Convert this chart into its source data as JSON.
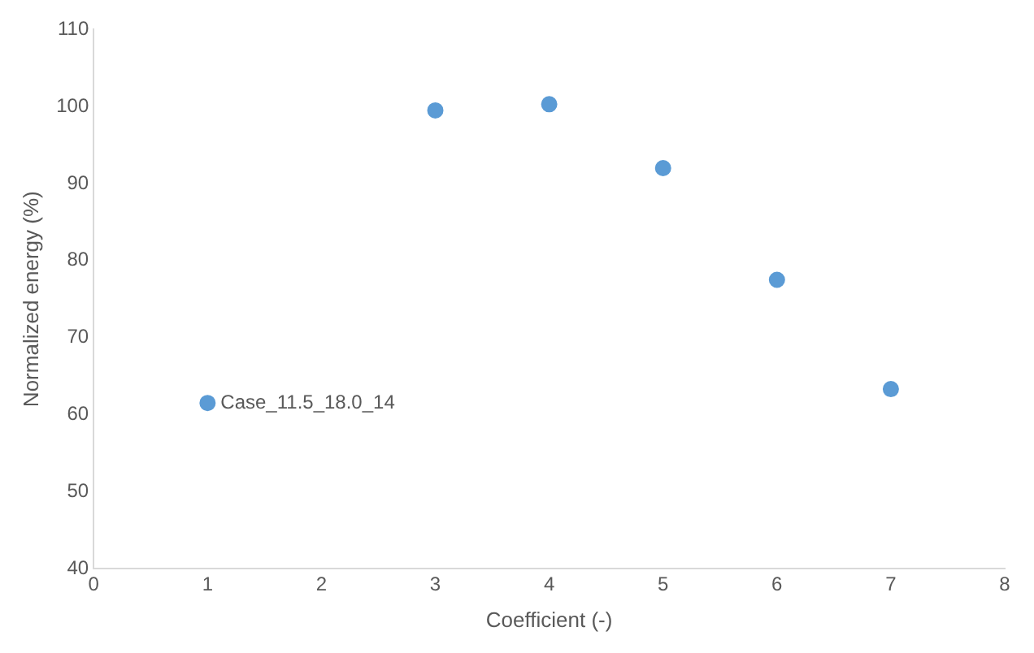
{
  "chart_data": {
    "type": "scatter",
    "xlabel": "Coefficient (-)",
    "ylabel": "Normalized energy (%)",
    "x": [
      1,
      3,
      4,
      5,
      6,
      7
    ],
    "series": [
      {
        "color": "#5b9bd5",
        "values": [
          61.5,
          99.5,
          100.3,
          92,
          77.5,
          63.3
        ]
      }
    ],
    "xlim": [
      0,
      8
    ],
    "xticks": [
      0,
      1,
      2,
      3,
      4,
      5,
      6,
      7,
      8
    ],
    "ylim": [
      40,
      110
    ],
    "yticks": [
      40,
      50,
      60,
      70,
      80,
      90,
      100,
      110
    ],
    "grid": false,
    "legend": false,
    "marker": "circle",
    "annotations": [
      {
        "text": "Case_11.5_18.0_14",
        "x": 1,
        "y": 61.5
      }
    ]
  }
}
